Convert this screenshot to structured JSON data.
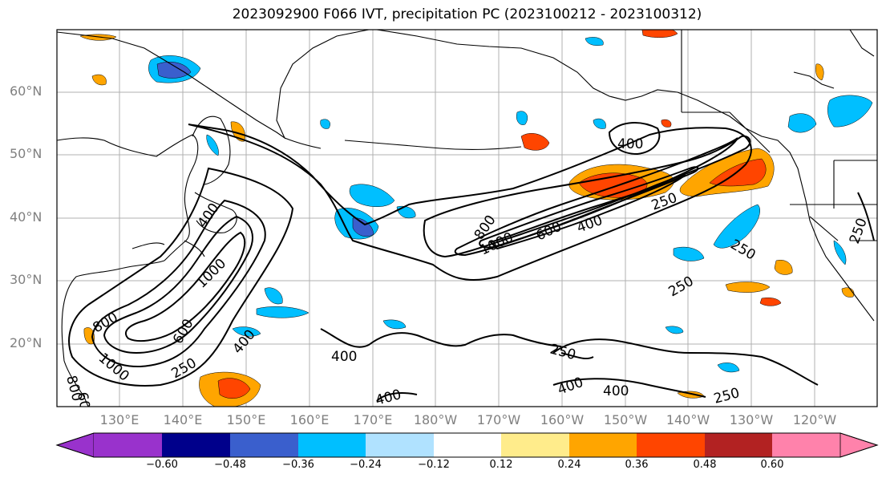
{
  "title": "2023092900 F066 IVT, precipitation PC (2023100212 - 2023100312)",
  "lat_labels": [
    "60°N",
    "50°N",
    "40°N",
    "30°N",
    "20°N"
  ],
  "lon_labels": [
    "130°E",
    "140°E",
    "150°E",
    "160°E",
    "170°E",
    "180°W",
    "170°W",
    "160°W",
    "150°W",
    "140°W",
    "130°W",
    "120°W"
  ],
  "colorbar": {
    "ticks": [
      "−0.60",
      "−0.48",
      "−0.36",
      "−0.24",
      "−0.12",
      "0.12",
      "0.24",
      "0.36",
      "0.48",
      "0.60"
    ],
    "colors": [
      "#9932cc",
      "#00008b",
      "#3a5fcd",
      "#00bfff",
      "#b0e2ff",
      "#ffffff",
      "#ffec8b",
      "#ffa500",
      "#ff4500",
      "#b22222",
      "#ff82ab"
    ]
  },
  "contour_labels": [
    "400",
    "250",
    "250",
    "800",
    "1000",
    "600",
    "400",
    "250",
    "250",
    "400",
    "1000",
    "800",
    "600",
    "400",
    "250",
    "1000",
    "800",
    "600",
    "400",
    "400",
    "250",
    "400",
    "400",
    "250"
  ]
}
